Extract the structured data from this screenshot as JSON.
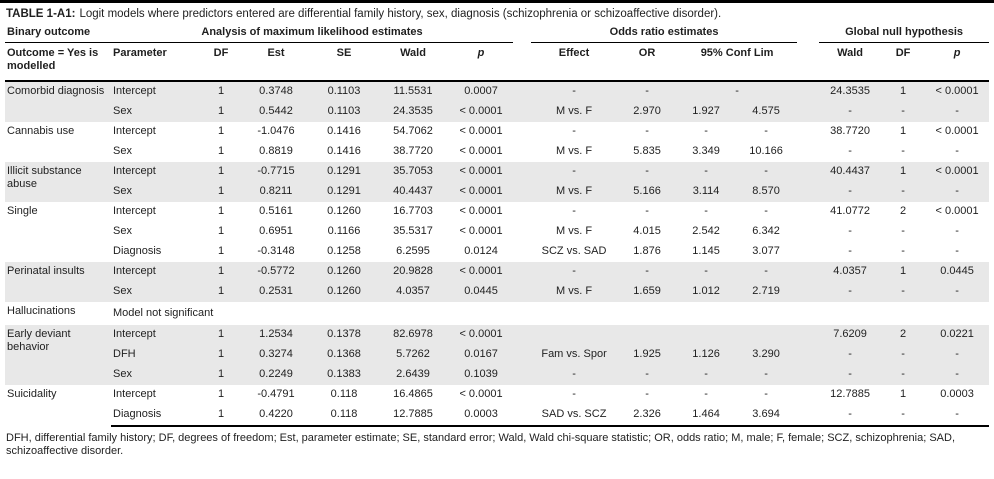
{
  "title": {
    "label": "TABLE 1-A1:",
    "text": "Logit models where predictors entered are differential family history, sex, diagnosis (schizophrenia or schizoaffective disorder)."
  },
  "headers": {
    "binary_outcome": "Binary outcome",
    "outcome_sub": "Outcome = Yes is modelled",
    "analysis": {
      "label": "Analysis of maximum likelihood estimates",
      "cols": [
        "Parameter",
        "DF",
        "Est",
        "SE",
        "Wald",
        "p"
      ]
    },
    "odds": {
      "label": "Odds ratio estimates",
      "cols": [
        "Effect",
        "OR",
        "95% Conf Lim"
      ]
    },
    "global": {
      "label": "Global null hypothesis",
      "cols": [
        "Wald",
        "DF",
        "p"
      ]
    }
  },
  "table": {
    "body": [
      {
        "outcome": "Comorbid diagnosis",
        "shaded": true,
        "rows": [
          {
            "param": "Intercept",
            "df": "1",
            "est": "0.3748",
            "se": "0.1103",
            "wald": "11.5531",
            "p": "0.0007",
            "effect": "-",
            "or": "-",
            "cl": [
              "-"
            ],
            "gwald": "24.3535",
            "gdf": "1",
            "gp": "< 0.0001"
          },
          {
            "param": "Sex",
            "df": "1",
            "est": "0.5442",
            "se": "0.1103",
            "wald": "24.3535",
            "p": "< 0.0001",
            "effect": "M vs. F",
            "or": "2.970",
            "cl": [
              "1.927",
              "4.575"
            ],
            "gwald": "-",
            "gdf": "-",
            "gp": "-"
          }
        ]
      },
      {
        "outcome": "Cannabis use",
        "shaded": false,
        "rows": [
          {
            "param": "Intercept",
            "df": "1",
            "est": "-1.0476",
            "se": "0.1416",
            "wald": "54.7062",
            "p": "< 0.0001",
            "effect": "-",
            "or": "-",
            "cl": [
              "-",
              "-"
            ],
            "gwald": "38.7720",
            "gdf": "1",
            "gp": "< 0.0001"
          },
          {
            "param": "Sex",
            "df": "1",
            "est": "0.8819",
            "se": "0.1416",
            "wald": "38.7720",
            "p": "< 0.0001",
            "effect": "M vs. F",
            "or": "5.835",
            "cl": [
              "3.349",
              "10.166"
            ],
            "gwald": "-",
            "gdf": "-",
            "gp": "-"
          }
        ]
      },
      {
        "outcome": "Illicit substance abuse",
        "shaded": true,
        "rows": [
          {
            "param": "Intercept",
            "df": "1",
            "est": "-0.7715",
            "se": "0.1291",
            "wald": "35.7053",
            "p": "< 0.0001",
            "effect": "-",
            "or": "-",
            "cl": [
              "-",
              "-"
            ],
            "gwald": "40.4437",
            "gdf": "1",
            "gp": "< 0.0001"
          },
          {
            "param": "Sex",
            "df": "1",
            "est": "0.8211",
            "se": "0.1291",
            "wald": "40.4437",
            "p": "< 0.0001",
            "effect": "M vs. F",
            "or": "5.166",
            "cl": [
              "3.114",
              "8.570"
            ],
            "gwald": "-",
            "gdf": "-",
            "gp": "-"
          }
        ]
      },
      {
        "outcome": "Single",
        "shaded": false,
        "rows": [
          {
            "param": "Intercept",
            "df": "1",
            "est": "0.5161",
            "se": "0.1260",
            "wald": "16.7703",
            "p": "< 0.0001",
            "effect": "-",
            "or": "-",
            "cl": [
              "-",
              "-"
            ],
            "gwald": "41.0772",
            "gdf": "2",
            "gp": "< 0.0001"
          },
          {
            "param": "Sex",
            "df": "1",
            "est": "0.6951",
            "se": "0.1166",
            "wald": "35.5317",
            "p": "< 0.0001",
            "effect": "M vs. F",
            "or": "4.015",
            "cl": [
              "2.542",
              "6.342"
            ],
            "gwald": "-",
            "gdf": "-",
            "gp": "-"
          },
          {
            "param": "Diagnosis",
            "df": "1",
            "est": "-0.3148",
            "se": "0.1258",
            "wald": "6.2595",
            "p": "0.0124",
            "effect": "SCZ vs. SAD",
            "or": "1.876",
            "cl": [
              "1.145",
              "3.077"
            ],
            "gwald": "-",
            "gdf": "-",
            "gp": "-"
          }
        ]
      },
      {
        "outcome": "Perinatal insults",
        "shaded": true,
        "rows": [
          {
            "param": "Intercept",
            "df": "1",
            "est": "-0.5772",
            "se": "0.1260",
            "wald": "20.9828",
            "p": "< 0.0001",
            "effect": "-",
            "or": "-",
            "cl": [
              "-",
              "-"
            ],
            "gwald": "4.0357",
            "gdf": "1",
            "gp": "0.0445"
          },
          {
            "param": "Sex",
            "df": "1",
            "est": "0.2531",
            "se": "0.1260",
            "wald": "4.0357",
            "p": "0.0445",
            "effect": "M vs. F",
            "or": "1.659",
            "cl": [
              "1.012",
              "2.719"
            ],
            "gwald": "-",
            "gdf": "-",
            "gp": "-"
          }
        ]
      },
      {
        "outcome": "Hallucinations",
        "shaded": false,
        "note": "Model not significant",
        "rows": []
      },
      {
        "outcome": "Early deviant behavior",
        "shaded": true,
        "rows": [
          {
            "param": "Intercept",
            "df": "1",
            "est": "1.2534",
            "se": "0.1378",
            "wald": "82.6978",
            "p": "< 0.0001",
            "effect": "",
            "or": "",
            "cl": [
              "",
              ""
            ],
            "gwald": "7.6209",
            "gdf": "2",
            "gp": "0.0221"
          },
          {
            "param": "DFH",
            "df": "1",
            "est": "0.3274",
            "se": "0.1368",
            "wald": "5.7262",
            "p": "0.0167",
            "effect": "Fam vs. Spor",
            "or": "1.925",
            "cl": [
              "1.126",
              "3.290"
            ],
            "gwald": "-",
            "gdf": "-",
            "gp": "-"
          },
          {
            "param": "Sex",
            "df": "1",
            "est": "0.2249",
            "se": "0.1383",
            "wald": "2.6439",
            "p": "0.1039",
            "effect": "-",
            "or": "-",
            "cl": [
              "-",
              "-"
            ],
            "gwald": "-",
            "gdf": "-",
            "gp": "-"
          }
        ]
      },
      {
        "outcome": "Suicidality",
        "shaded": false,
        "rows": [
          {
            "param": "Intercept",
            "df": "1",
            "est": "-0.4791",
            "se": "0.118",
            "wald": "16.4865",
            "p": "< 0.0001",
            "effect": "-",
            "or": "-",
            "cl": [
              "-",
              "-"
            ],
            "gwald": "12.7885",
            "gdf": "1",
            "gp": "0.0003"
          },
          {
            "param": "Diagnosis",
            "df": "1",
            "est": "0.4220",
            "se": "0.118",
            "wald": "12.7885",
            "p": "0.0003",
            "effect": "SAD vs. SCZ",
            "or": "2.326",
            "cl": [
              "1.464",
              "3.694"
            ],
            "gwald": "-",
            "gdf": "-",
            "gp": "-"
          }
        ]
      }
    ]
  },
  "footnote": "DFH, differential family history; DF, degrees of freedom; Est, parameter estimate; SE, standard error; Wald, Wald chi-square statistic; OR, odds ratio; M, male; F, female; SCZ, schizophrenia; SAD, schizoaffective disorder."
}
